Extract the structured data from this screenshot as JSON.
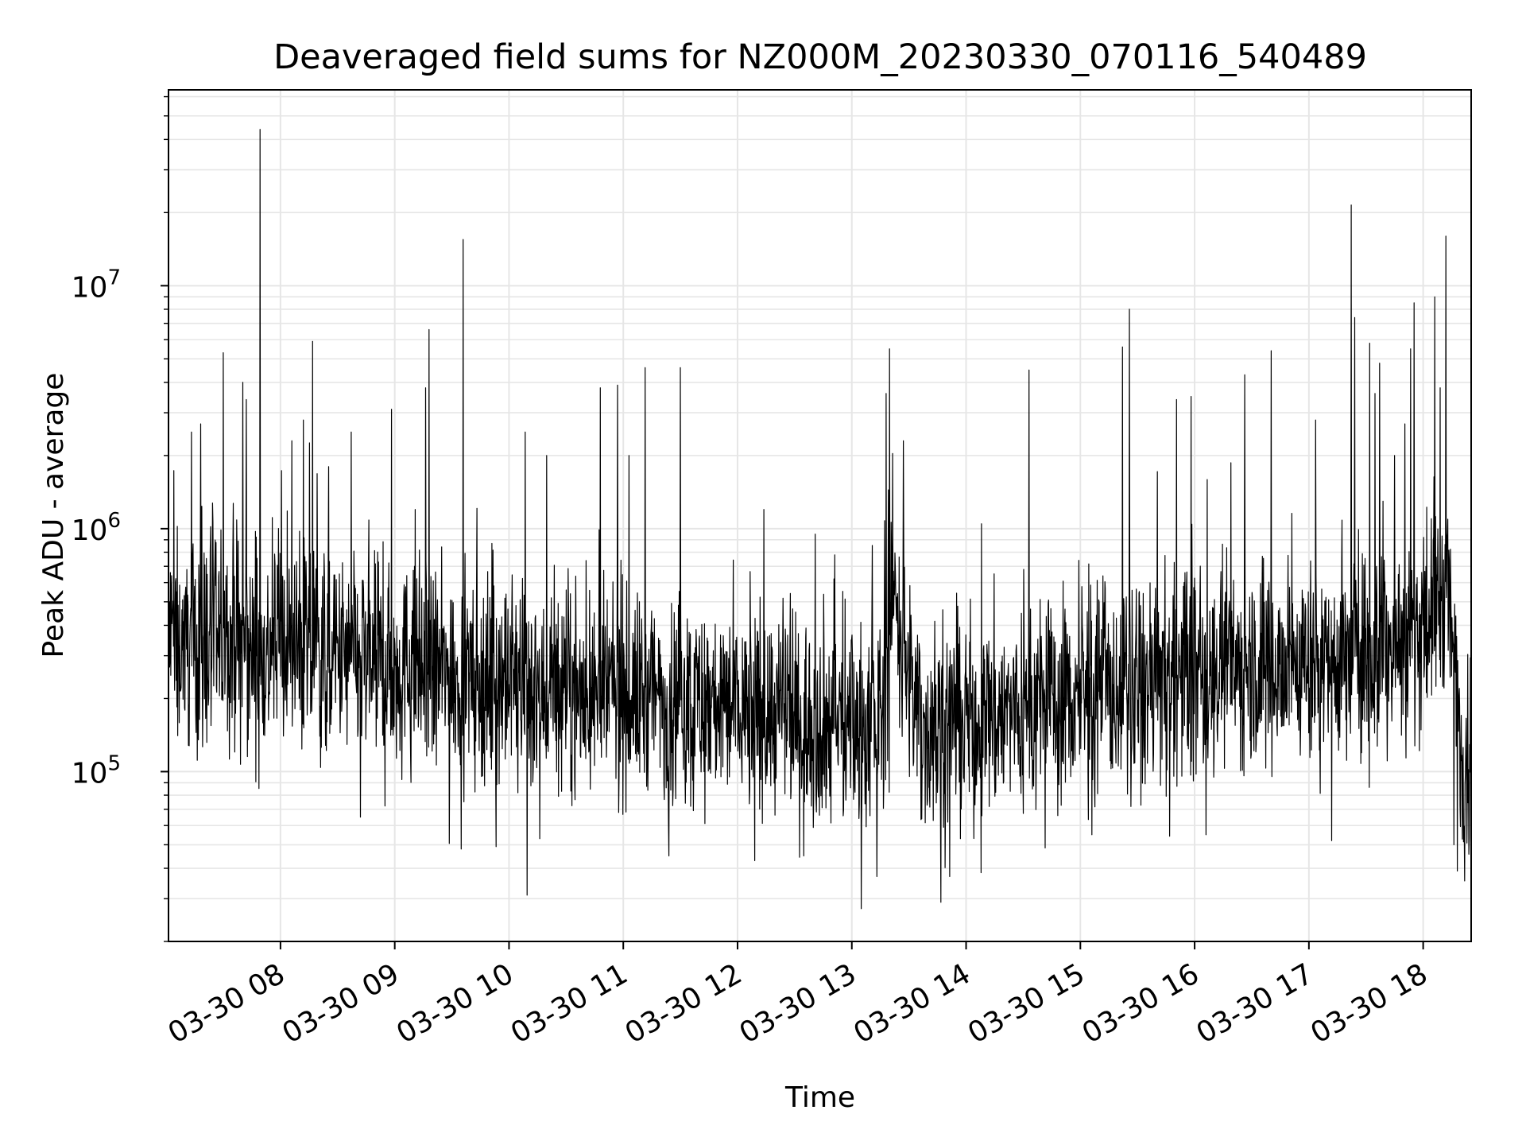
{
  "chart_data": {
    "type": "line",
    "title": "Deaveraged field sums for NZ000M_20230330_070116_540489",
    "xlabel": "Time",
    "ylabel": "Peak ADU - average",
    "yscale": "log",
    "ylim": [
      20000,
      64000000
    ],
    "xlim": [
      "03-30 07:01",
      "03-30 18:25"
    ],
    "grid": true,
    "line_color": "#000000",
    "grid_color": "#e6e6e6",
    "x_ticks": [
      "03-30 08",
      "03-30 09",
      "03-30 10",
      "03-30 11",
      "03-30 12",
      "03-30 13",
      "03-30 14",
      "03-30 15",
      "03-30 16",
      "03-30 17",
      "03-30 18"
    ],
    "y_ticks": [
      {
        "base": "10",
        "exp": "5",
        "value": 100000
      },
      {
        "base": "10",
        "exp": "6",
        "value": 1000000
      },
      {
        "base": "10",
        "exp": "7",
        "value": 10000000
      }
    ],
    "x_start_hour": 7.02,
    "x_end_hour": 18.42,
    "series": [
      {
        "baseline": [
          [
            7.02,
            350000
          ],
          [
            7.5,
            330000
          ],
          [
            8.0,
            310000
          ],
          [
            8.5,
            290000
          ],
          [
            9.0,
            270000
          ],
          [
            9.5,
            250000
          ],
          [
            10.0,
            230000
          ],
          [
            10.5,
            215000
          ],
          [
            11.0,
            205000
          ],
          [
            11.5,
            195000
          ],
          [
            12.0,
            185000
          ],
          [
            12.5,
            165000
          ],
          [
            13.0,
            160000
          ],
          [
            13.28,
            170000
          ],
          [
            13.35,
            650000
          ],
          [
            13.48,
            260000
          ],
          [
            13.6,
            150000
          ],
          [
            14.0,
            160000
          ],
          [
            14.5,
            185000
          ],
          [
            15.0,
            200000
          ],
          [
            15.5,
            220000
          ],
          [
            16.0,
            250000
          ],
          [
            16.5,
            270000
          ],
          [
            17.0,
            280000
          ],
          [
            17.5,
            310000
          ],
          [
            18.0,
            360000
          ],
          [
            18.2,
            550000
          ],
          [
            18.3,
            220000
          ],
          [
            18.35,
            110000
          ],
          [
            18.42,
            130000
          ]
        ],
        "spikes": [
          [
            7.82,
            44000000
          ],
          [
            8.28,
            5900000
          ],
          [
            7.5,
            5300000
          ],
          [
            7.67,
            4000000
          ],
          [
            7.7,
            3400000
          ],
          [
            7.22,
            2500000
          ],
          [
            7.3,
            2700000
          ],
          [
            8.1,
            2300000
          ],
          [
            8.2,
            2800000
          ],
          [
            8.42,
            1800000
          ],
          [
            8.62,
            2500000
          ],
          [
            8.97,
            3100000
          ],
          [
            9.27,
            3800000
          ],
          [
            9.3,
            6600000
          ],
          [
            9.6,
            15500000
          ],
          [
            10.14,
            2500000
          ],
          [
            10.33,
            2000000
          ],
          [
            10.8,
            3800000
          ],
          [
            10.95,
            3900000
          ],
          [
            11.05,
            2000000
          ],
          [
            11.19,
            4600000
          ],
          [
            11.5,
            4600000
          ],
          [
            12.68,
            950000
          ],
          [
            12.85,
            780000
          ],
          [
            13.22,
            2800000
          ],
          [
            13.33,
            5500000
          ],
          [
            13.45,
            2300000
          ],
          [
            13.3,
            3600000
          ],
          [
            14.55,
            4500000
          ],
          [
            15.37,
            5600000
          ],
          [
            15.43,
            8000000
          ],
          [
            15.84,
            3400000
          ],
          [
            15.97,
            3500000
          ],
          [
            16.44,
            4300000
          ],
          [
            16.67,
            5400000
          ],
          [
            17.06,
            2800000
          ],
          [
            17.37,
            21500000
          ],
          [
            17.4,
            7400000
          ],
          [
            17.53,
            5800000
          ],
          [
            17.62,
            4800000
          ],
          [
            17.84,
            2700000
          ],
          [
            17.89,
            5500000
          ],
          [
            17.92,
            8500000
          ],
          [
            18.1,
            9000000
          ],
          [
            18.2,
            16000000
          ],
          [
            18.15,
            3800000
          ],
          [
            17.75,
            2000000
          ],
          [
            17.58,
            3600000
          ],
          [
            9.18,
            1200000
          ],
          [
            12.23,
            1200000
          ]
        ],
        "dips": [
          [
            10.16,
            31000
          ],
          [
            13.78,
            29000
          ],
          [
            13.22,
            37000
          ],
          [
            12.15,
            43000
          ],
          [
            9.58,
            48000
          ],
          [
            18.3,
            39000
          ],
          [
            18.27,
            50000
          ],
          [
            11.4,
            45000
          ],
          [
            17.2,
            52000
          ],
          [
            15.1,
            55000
          ],
          [
            10.27,
            53000
          ],
          [
            8.7,
            65000
          ],
          [
            12.58,
            45000
          ],
          [
            13.95,
            53000
          ],
          [
            16.1,
            55000
          ]
        ]
      }
    ]
  }
}
